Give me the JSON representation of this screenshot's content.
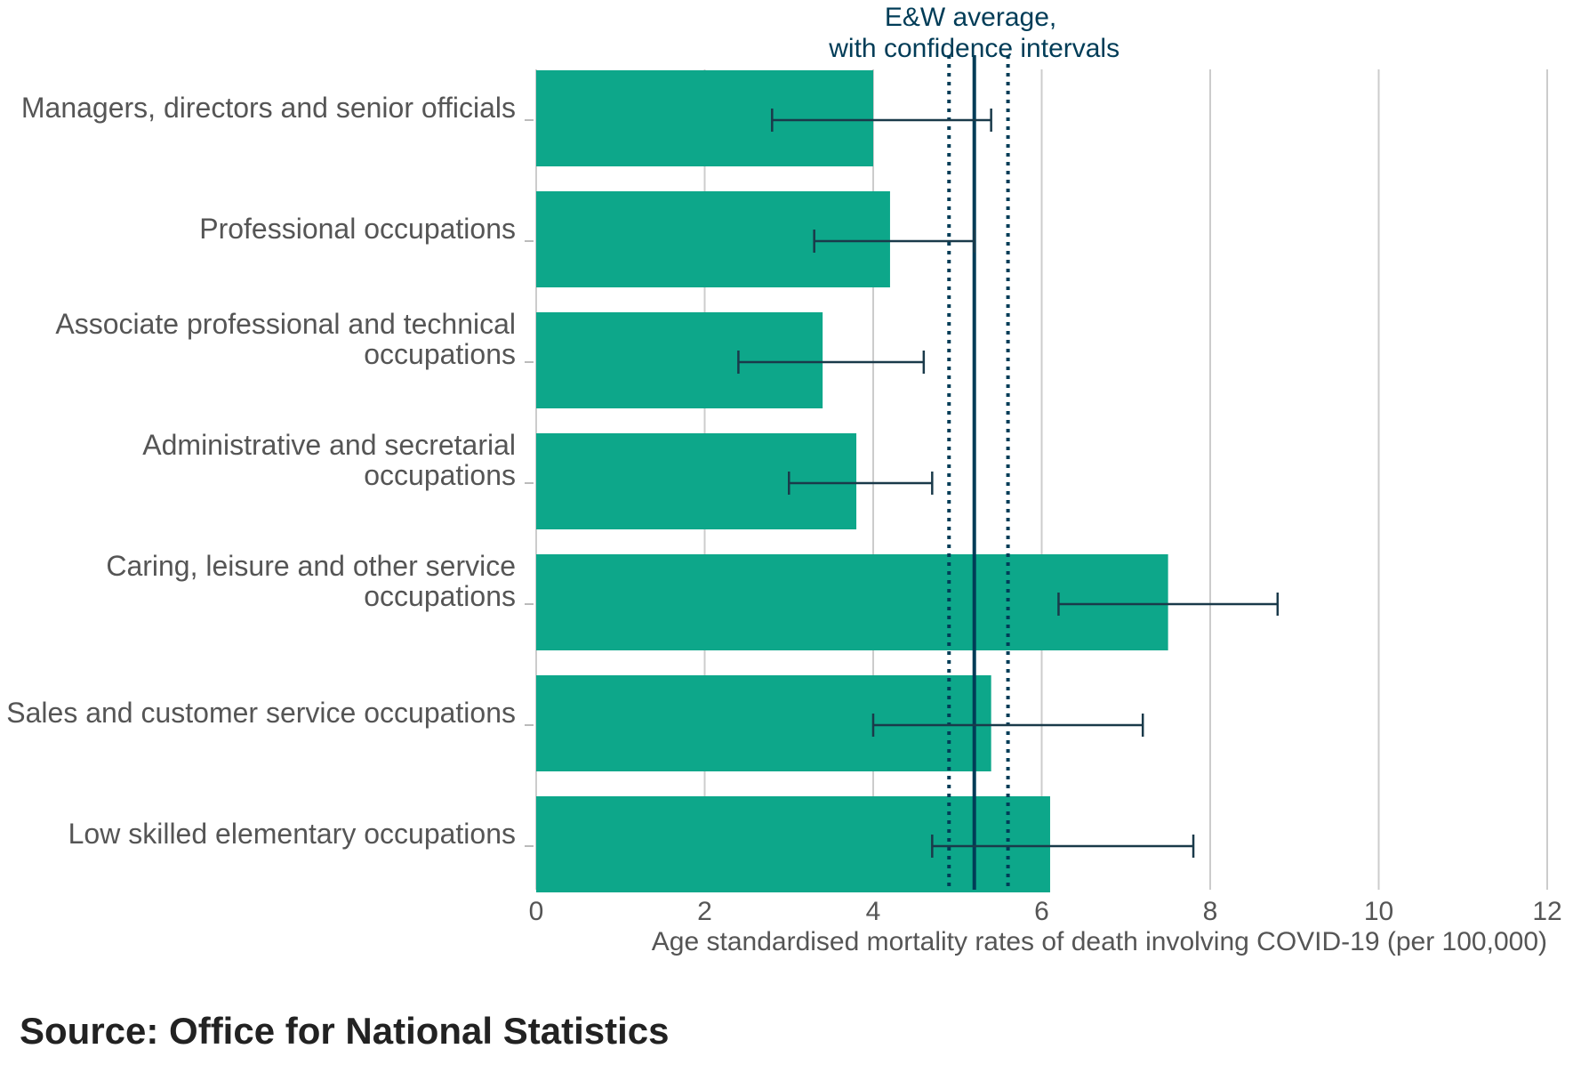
{
  "chart_data": {
    "type": "bar",
    "orientation": "horizontal",
    "categories": [
      [
        "Managers, directors and senior officials"
      ],
      [
        "Professional occupations"
      ],
      [
        "Associate professional and technical",
        "occupations"
      ],
      [
        "Administrative and secretarial",
        "occupations"
      ],
      [
        "Caring, leisure and other service",
        "occupations"
      ],
      [
        "Sales and customer service occupations"
      ],
      [
        "Low skilled elementary occupations"
      ]
    ],
    "values": [
      4.0,
      4.2,
      3.4,
      3.8,
      7.5,
      5.4,
      6.1
    ],
    "ci_lower": [
      2.8,
      3.3,
      2.4,
      3.0,
      6.2,
      4.0,
      4.7
    ],
    "ci_upper": [
      5.4,
      5.2,
      4.6,
      4.7,
      8.8,
      7.2,
      7.8
    ],
    "reference": {
      "label_lines": [
        "E&W average,",
        "with confidence intervals"
      ],
      "value": 5.2,
      "ci_lower": 4.9,
      "ci_upper": 5.6
    },
    "xlim": [
      0,
      12
    ],
    "xticks": [
      0,
      2,
      4,
      6,
      8,
      10,
      12
    ],
    "xlabel": "Age standardised mortality rates of death involving COVID-19 (per 100,000)",
    "ylabel": "",
    "grid": true,
    "colors": {
      "bar": "#0da78a",
      "error_bar": "#1a3a4a",
      "reference_line": "#003c57",
      "grid": "#cccccc",
      "label_text": "#555555"
    }
  },
  "source": "Source: Office for National Statistics"
}
